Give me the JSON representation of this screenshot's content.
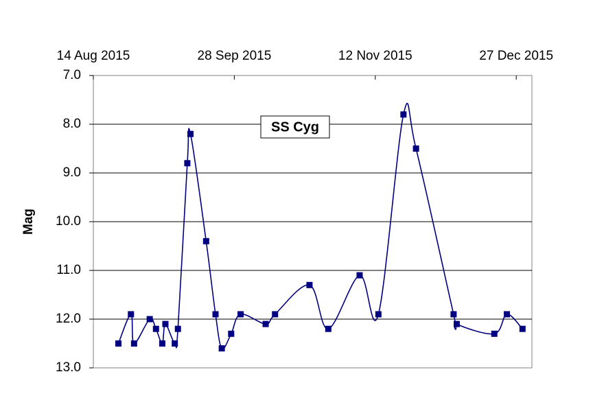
{
  "chart_data": {
    "type": "line",
    "title": "SS Cyg",
    "y_label": "Mag",
    "x": [
      "2015-08-22",
      "2015-08-26",
      "2015-08-27",
      "2015-09-01",
      "2015-09-03",
      "2015-09-05",
      "2015-09-06",
      "2015-09-09",
      "2015-09-10",
      "2015-09-13",
      "2015-09-14",
      "2015-09-19",
      "2015-09-22",
      "2015-09-24",
      "2015-09-27",
      "2015-09-30",
      "2015-10-08",
      "2015-10-11",
      "2015-10-22",
      "2015-10-28",
      "2015-11-07",
      "2015-11-13",
      "2015-11-21",
      "2015-11-25",
      "2015-12-07",
      "2015-12-08",
      "2015-12-20",
      "2015-12-24",
      "2015-12-29"
    ],
    "series": [
      {
        "name": "SS Cyg",
        "color": "#000080",
        "values": [
          12.5,
          11.9,
          12.5,
          12.0,
          12.2,
          12.5,
          12.1,
          12.5,
          12.2,
          8.8,
          8.2,
          10.4,
          11.9,
          12.6,
          12.3,
          11.9,
          12.1,
          11.9,
          11.3,
          12.2,
          11.1,
          11.9,
          7.8,
          8.5,
          11.9,
          12.1,
          12.3,
          11.9,
          12.2
        ]
      }
    ],
    "xlim": [
      "2015-08-14",
      "2016-01-01"
    ],
    "xticks": [
      {
        "value": "2015-08-14",
        "label": "14 Aug 2015"
      },
      {
        "value": "2015-09-28",
        "label": "28 Sep 2015"
      },
      {
        "value": "2015-11-12",
        "label": "12 Nov 2015"
      },
      {
        "value": "2015-12-27",
        "label": "27 Dec 2015"
      }
    ],
    "ylim": [
      7,
      13
    ],
    "y_inverted": true,
    "yticks": [
      {
        "value": 7,
        "label": "7.0"
      },
      {
        "value": 8,
        "label": "8.0"
      },
      {
        "value": 9,
        "label": "9.0"
      },
      {
        "value": 10,
        "label": "10.0"
      },
      {
        "value": 11,
        "label": "11.0"
      },
      {
        "value": 12,
        "label": "12.0"
      },
      {
        "value": 13,
        "label": "13.0"
      }
    ],
    "grid": true,
    "x_axis_position": "top"
  }
}
